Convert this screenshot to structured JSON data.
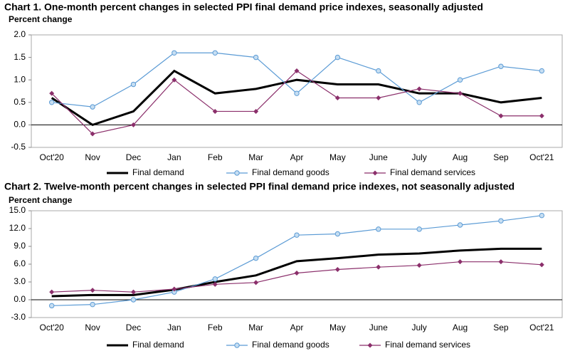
{
  "chart_data": [
    {
      "type": "line",
      "title": "Chart 1. One-month percent changes in selected PPI final demand price indexes, seasonally adjusted",
      "y_label": "Percent change",
      "categories": [
        "Oct'20",
        "Nov",
        "Dec",
        "Jan",
        "Feb",
        "Mar",
        "Apr",
        "May",
        "June",
        "July",
        "Aug",
        "Sep",
        "Oct'21"
      ],
      "ylim": [
        -0.5,
        2.0
      ],
      "yticks": [
        -0.5,
        {
          "value": 0,
          "label": "0.0"
        },
        0.5,
        {
          "value": 1,
          "label": "1.0"
        },
        1.5,
        {
          "value": 2,
          "label": "2.0"
        }
      ],
      "series": [
        {
          "name": "Final demand",
          "color": "#000000",
          "values": [
            0.6,
            0.0,
            0.3,
            1.2,
            0.7,
            0.8,
            1.0,
            0.9,
            0.9,
            0.7,
            0.7,
            0.5,
            0.6
          ]
        },
        {
          "name": "Final demand goods",
          "color": "#5b9bd5",
          "values": [
            0.5,
            0.4,
            0.9,
            1.6,
            1.6,
            1.5,
            0.7,
            1.5,
            1.2,
            0.5,
            1.0,
            1.3,
            1.2
          ]
        },
        {
          "name": "Final demand services",
          "color": "#8b2f6b",
          "values": [
            0.7,
            -0.2,
            0.0,
            1.0,
            0.3,
            0.3,
            1.2,
            0.6,
            0.6,
            0.8,
            0.7,
            0.2,
            0.2
          ]
        }
      ]
    },
    {
      "type": "line",
      "title": "Chart 2. Twelve-month percent changes in selected PPI final demand price indexes, not seasonally adjusted",
      "y_label": "Percent change",
      "categories": [
        "Oct'20",
        "Nov",
        "Dec",
        "Jan",
        "Feb",
        "Mar",
        "Apr",
        "May",
        "June",
        "July",
        "Aug",
        "Sep",
        "Oct'21"
      ],
      "ylim": [
        -3,
        15
      ],
      "yticks": [
        {
          "value": -3,
          "label": "-3.0"
        },
        {
          "value": 0,
          "label": "0.0"
        },
        {
          "value": 3,
          "label": "3.0"
        },
        {
          "value": 6,
          "label": "6.0"
        },
        {
          "value": 9,
          "label": "9.0"
        },
        {
          "value": 12,
          "label": "12.0"
        },
        {
          "value": 15,
          "label": "15.0"
        }
      ],
      "series": [
        {
          "name": "Final demand",
          "color": "#000000",
          "values": [
            0.6,
            0.8,
            0.8,
            1.7,
            3.0,
            4.1,
            6.5,
            7.0,
            7.6,
            7.8,
            8.3,
            8.6,
            8.6
          ]
        },
        {
          "name": "Final demand goods",
          "color": "#5b9bd5",
          "values": [
            -1.0,
            -0.8,
            0.0,
            1.3,
            3.5,
            7.0,
            10.9,
            11.1,
            11.9,
            11.9,
            12.6,
            13.3,
            14.2
          ]
        },
        {
          "name": "Final demand services",
          "color": "#8b2f6b",
          "values": [
            1.3,
            1.6,
            1.3,
            1.8,
            2.6,
            2.9,
            4.5,
            5.1,
            5.5,
            5.8,
            6.4,
            6.4,
            5.9
          ]
        }
      ]
    }
  ]
}
